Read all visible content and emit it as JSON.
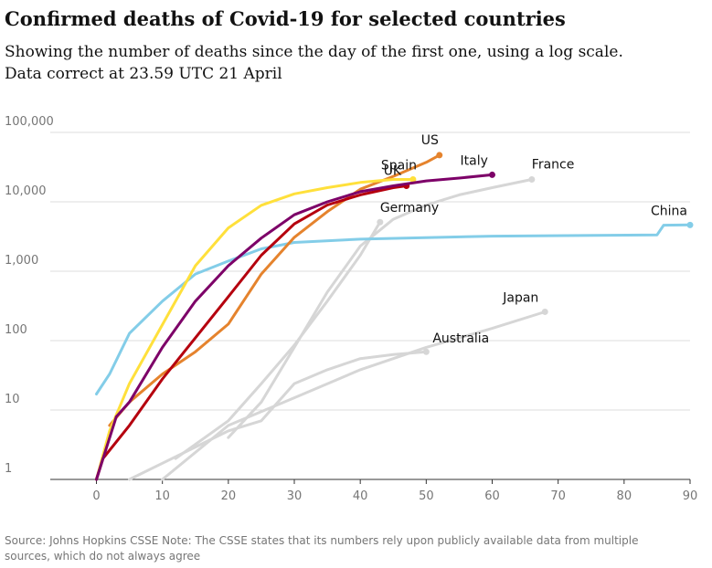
{
  "chart_data": {
    "type": "line",
    "title": "Confirmed deaths of Covid-19 for selected countries",
    "subtitle": [
      "Showing the number of deaths since the day of the first one, using a log scale.",
      "Data correct at 23.59 UTC 21 April"
    ],
    "source": [
      "Source: Johns Hopkins CSSE Note: The CSSE states that its numbers rely upon publicly available data from multiple",
      "sources, which do not always agree"
    ],
    "log_scale": true,
    "grid": true,
    "xlim": [
      -7,
      90
    ],
    "xticks": [
      0,
      10,
      20,
      30,
      40,
      50,
      60,
      70,
      80,
      90
    ],
    "ylim": [
      1,
      100000
    ],
    "yticks": [
      {
        "value": 100000,
        "label": "100,000"
      },
      {
        "value": 10000,
        "label": "10,000"
      },
      {
        "value": 1000,
        "label": "1,000"
      },
      100,
      10,
      1
    ],
    "series": [
      {
        "name": "France",
        "color": "#d6d6d6",
        "x": [
          20,
          25,
          30,
          35,
          40,
          45,
          50,
          55,
          60,
          66
        ],
        "values": [
          4,
          13,
          80,
          500,
          2300,
          5600,
          9000,
          12600,
          16000,
          21000
        ]
      },
      {
        "name": "Germany",
        "color": "#d6d6d6",
        "x": [
          12,
          20,
          25,
          30,
          35,
          40,
          43
        ],
        "values": [
          2,
          7,
          24,
          86,
          370,
          1700,
          5100
        ]
      },
      {
        "name": "Japan",
        "color": "#d6d6d6",
        "x": [
          10,
          20,
          30,
          40,
          50,
          60,
          68
        ],
        "values": [
          1,
          6,
          15,
          38,
          80,
          150,
          260
        ]
      },
      {
        "name": "Australia",
        "color": "#d6d6d6",
        "x": [
          5,
          20,
          25,
          30,
          35,
          40,
          45,
          50
        ],
        "values": [
          1,
          5,
          7,
          24,
          38,
          55,
          63,
          69
        ]
      },
      {
        "name": "China",
        "color": "#83cde8",
        "x": [
          0,
          2,
          5,
          10,
          15,
          20,
          25,
          30,
          40,
          60,
          85,
          86,
          90
        ],
        "values": [
          17,
          33,
          127,
          370,
          910,
          1400,
          2100,
          2600,
          2900,
          3200,
          3340,
          4600,
          4640
        ]
      },
      {
        "name": "US",
        "color": "#e5832d",
        "x": [
          2,
          5,
          10,
          15,
          20,
          25,
          30,
          35,
          40,
          45,
          50,
          52
        ],
        "values": [
          6,
          13,
          33,
          69,
          173,
          910,
          3080,
          7200,
          15200,
          23300,
          37000,
          47000
        ]
      },
      {
        "name": "Spain",
        "color": "#ffe03b",
        "x": [
          0,
          2,
          5,
          10,
          15,
          20,
          25,
          30,
          35,
          40,
          45,
          48
        ],
        "values": [
          1,
          5,
          24,
          170,
          1200,
          4200,
          8900,
          13000,
          16000,
          19000,
          21000,
          21000
        ]
      },
      {
        "name": "UK",
        "color": "#b5000e",
        "x": [
          0,
          1,
          5,
          10,
          15,
          20,
          25,
          30,
          35,
          40,
          45,
          47
        ],
        "values": [
          1,
          2,
          6,
          28,
          110,
          430,
          1700,
          4800,
          9000,
          12600,
          16000,
          17000
        ]
      },
      {
        "name": "Italy",
        "color": "#7d0068",
        "x": [
          0,
          3,
          5,
          10,
          15,
          20,
          25,
          30,
          35,
          40,
          45,
          50,
          55,
          60
        ],
        "values": [
          1,
          8,
          13,
          80,
          370,
          1200,
          3000,
          6500,
          10000,
          14000,
          17000,
          20000,
          22000,
          24500
        ]
      }
    ]
  }
}
